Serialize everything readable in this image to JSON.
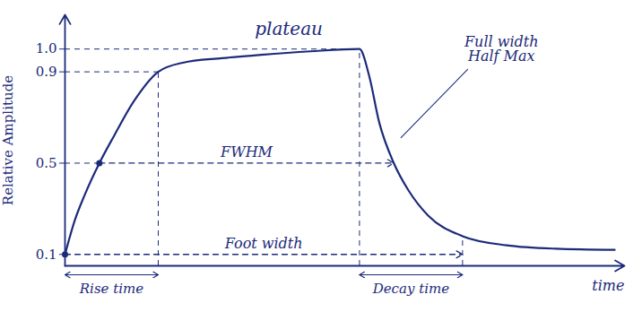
{
  "chart_data": {
    "type": "line",
    "y_label": "Relative Amplitude",
    "x_label": "time",
    "x": [
      0,
      1,
      2,
      3.5,
      5,
      7,
      9.5,
      12,
      16,
      20,
      25,
      30,
      31,
      32,
      33.5,
      35,
      37,
      40.5,
      45,
      50,
      56
    ],
    "values": [
      0.1,
      0.25,
      0.36,
      0.5,
      0.62,
      0.77,
      0.9,
      0.94,
      0.96,
      0.975,
      0.99,
      1.0,
      0.88,
      0.68,
      0.5,
      0.38,
      0.27,
      0.18,
      0.14,
      0.125,
      0.12
    ],
    "color": "#1c2a7a",
    "line_style": "solid",
    "xlim": [
      0,
      57
    ],
    "ylim": [
      0.05,
      1.15
    ],
    "yticks": [
      0.1,
      0.5,
      0.9,
      {
        "value": 1,
        "label": "1.0"
      }
    ],
    "tick_labels": "y",
    "grid": false,
    "intervals": [
      {
        "label": "Rise time",
        "from": 0,
        "to": 9.5
      },
      {
        "label": "Foot width",
        "from": 0,
        "to": 40.5,
        "level": 0.1
      },
      {
        "label": "Decay time",
        "from": 30,
        "to": 40.5
      },
      {
        "label": "FWHM",
        "from": 3.5,
        "to": 33.5,
        "level": 0.5
      }
    ],
    "annotations": [
      {
        "text": "plateau"
      },
      {
        "text": "Full width Half Max"
      }
    ]
  }
}
